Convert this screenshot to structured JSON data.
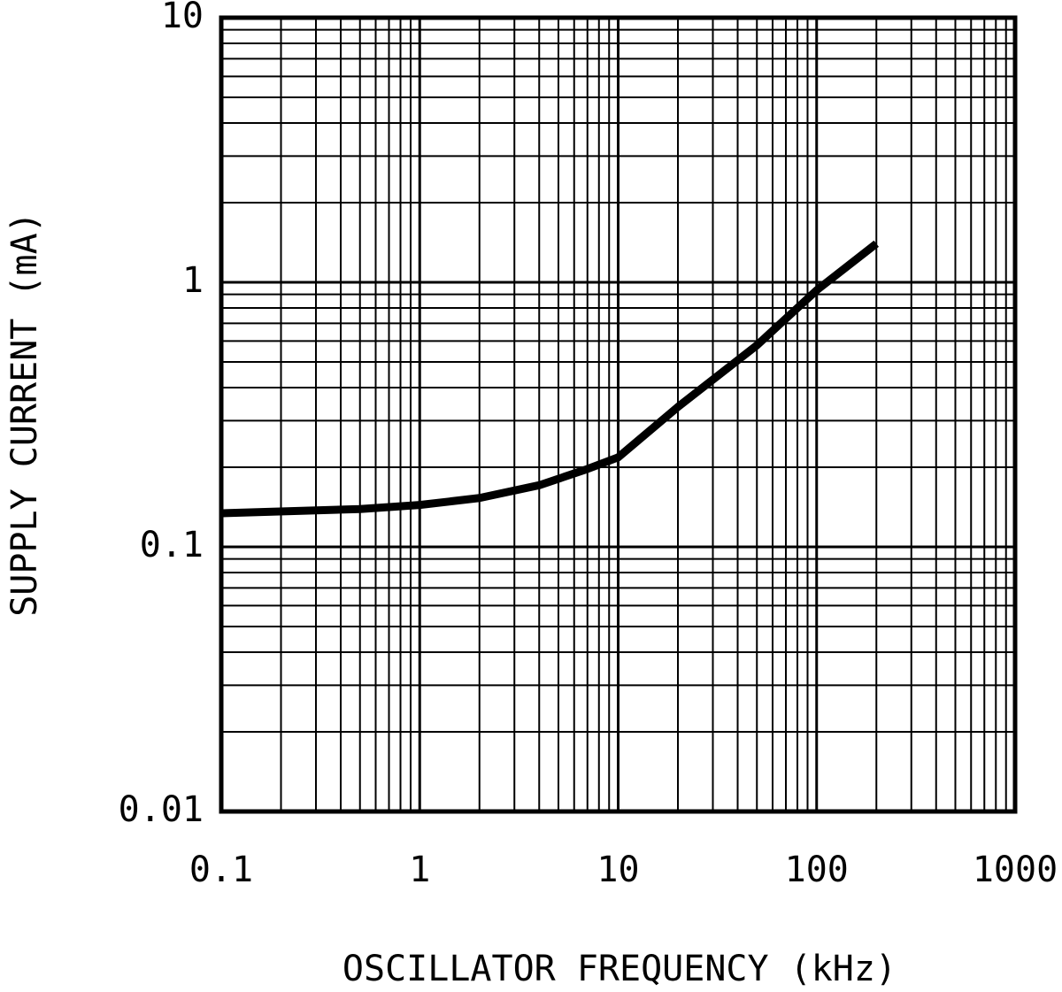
{
  "chart_data": {
    "type": "line",
    "xlabel": "OSCILLATOR FREQUENCY (kHz)",
    "ylabel": "SUPPLY CURRENT (mA)",
    "x": [
      0.1,
      0.5,
      1,
      2,
      4,
      7,
      10,
      20,
      50,
      100,
      200
    ],
    "series": [
      {
        "color": "#000000",
        "values": [
          0.134,
          0.139,
          0.144,
          0.153,
          0.171,
          0.197,
          0.218,
          0.338,
          0.578,
          0.933,
          1.4
        ]
      }
    ],
    "xlim": [
      0.1,
      1000
    ],
    "ylim": [
      0.01,
      10
    ],
    "xticks": [
      0.1,
      1,
      10,
      100,
      1000
    ],
    "yticks": [
      0.01,
      0.1,
      1,
      10
    ],
    "xscale": "log",
    "yscale": "log",
    "grid": true,
    "minor_grid": true
  }
}
